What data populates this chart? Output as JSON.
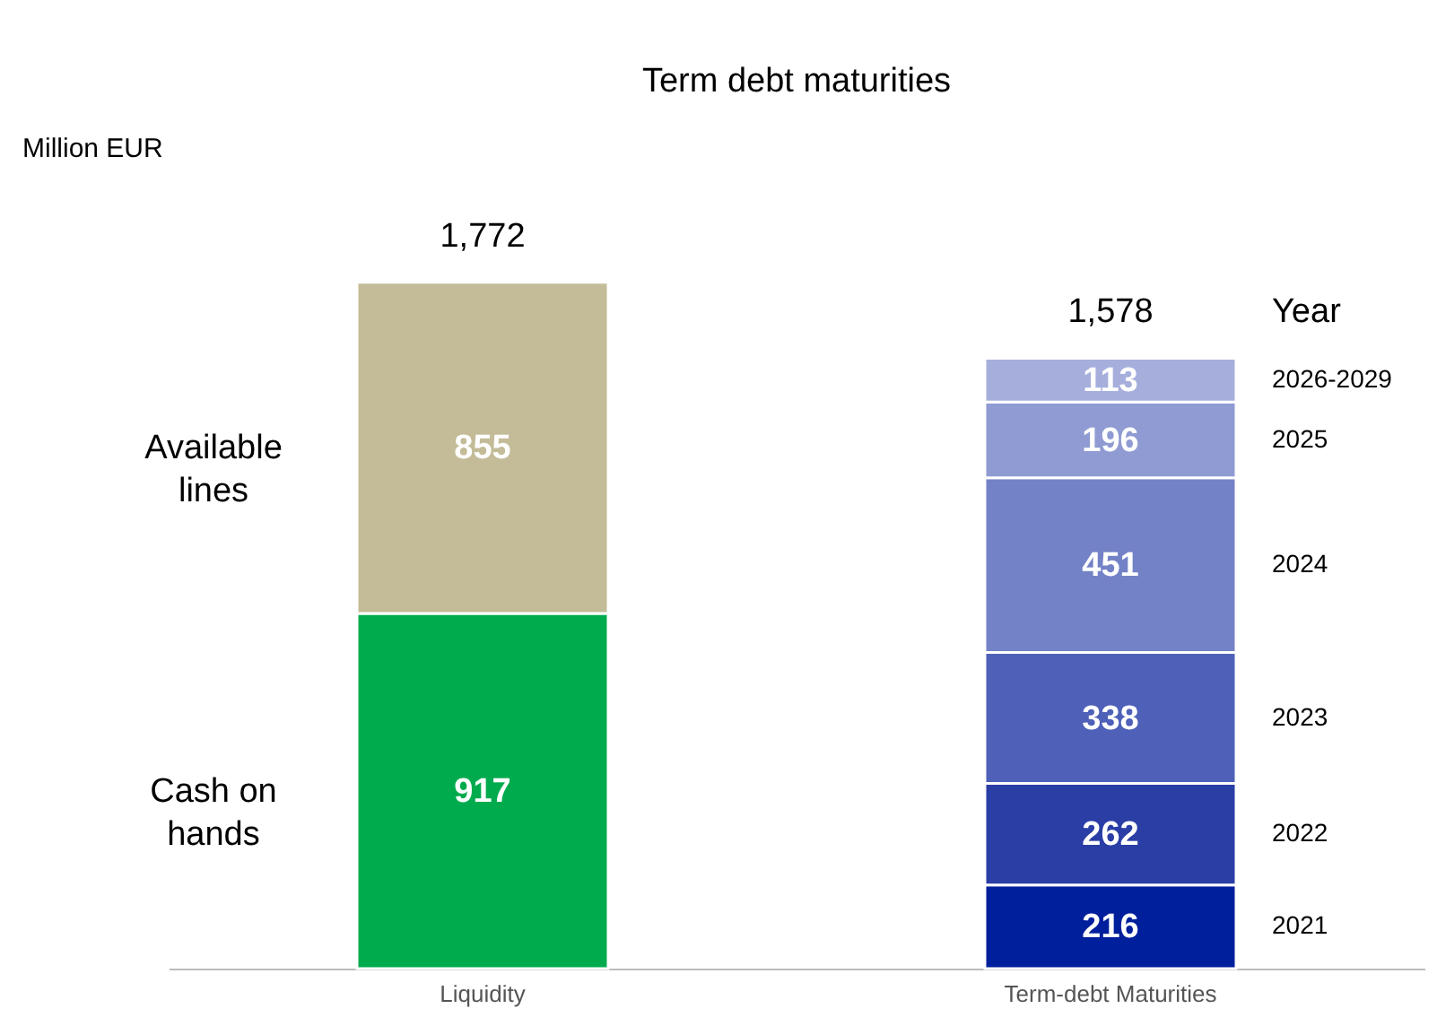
{
  "chart_data": {
    "type": "bar",
    "stacked": true,
    "title": "Term debt maturities",
    "ylabel": "Million EUR",
    "legend_title": "Year",
    "categories": [
      "Liquidity",
      "Term-debt Maturities"
    ],
    "series": [
      {
        "name": "Cash on hands",
        "color": "#00ab4e",
        "values": [
          917,
          null
        ]
      },
      {
        "name": "Available lines",
        "color": "#c4bc98",
        "values": [
          855,
          null
        ]
      },
      {
        "name": "2021",
        "color": "#001f9c",
        "values": [
          null,
          216
        ]
      },
      {
        "name": "2022",
        "color": "#2a3ea6",
        "values": [
          null,
          262
        ]
      },
      {
        "name": "2023",
        "color": "#4e60b8",
        "values": [
          null,
          338
        ]
      },
      {
        "name": "2024",
        "color": "#7382c6",
        "values": [
          null,
          451
        ]
      },
      {
        "name": "2025",
        "color": "#8f9bd2",
        "values": [
          null,
          196
        ]
      },
      {
        "name": "2026-2029",
        "color": "#a6afdc",
        "values": [
          null,
          113
        ]
      }
    ],
    "data_labels": true,
    "totals": [
      "1,772",
      "1,578"
    ]
  }
}
